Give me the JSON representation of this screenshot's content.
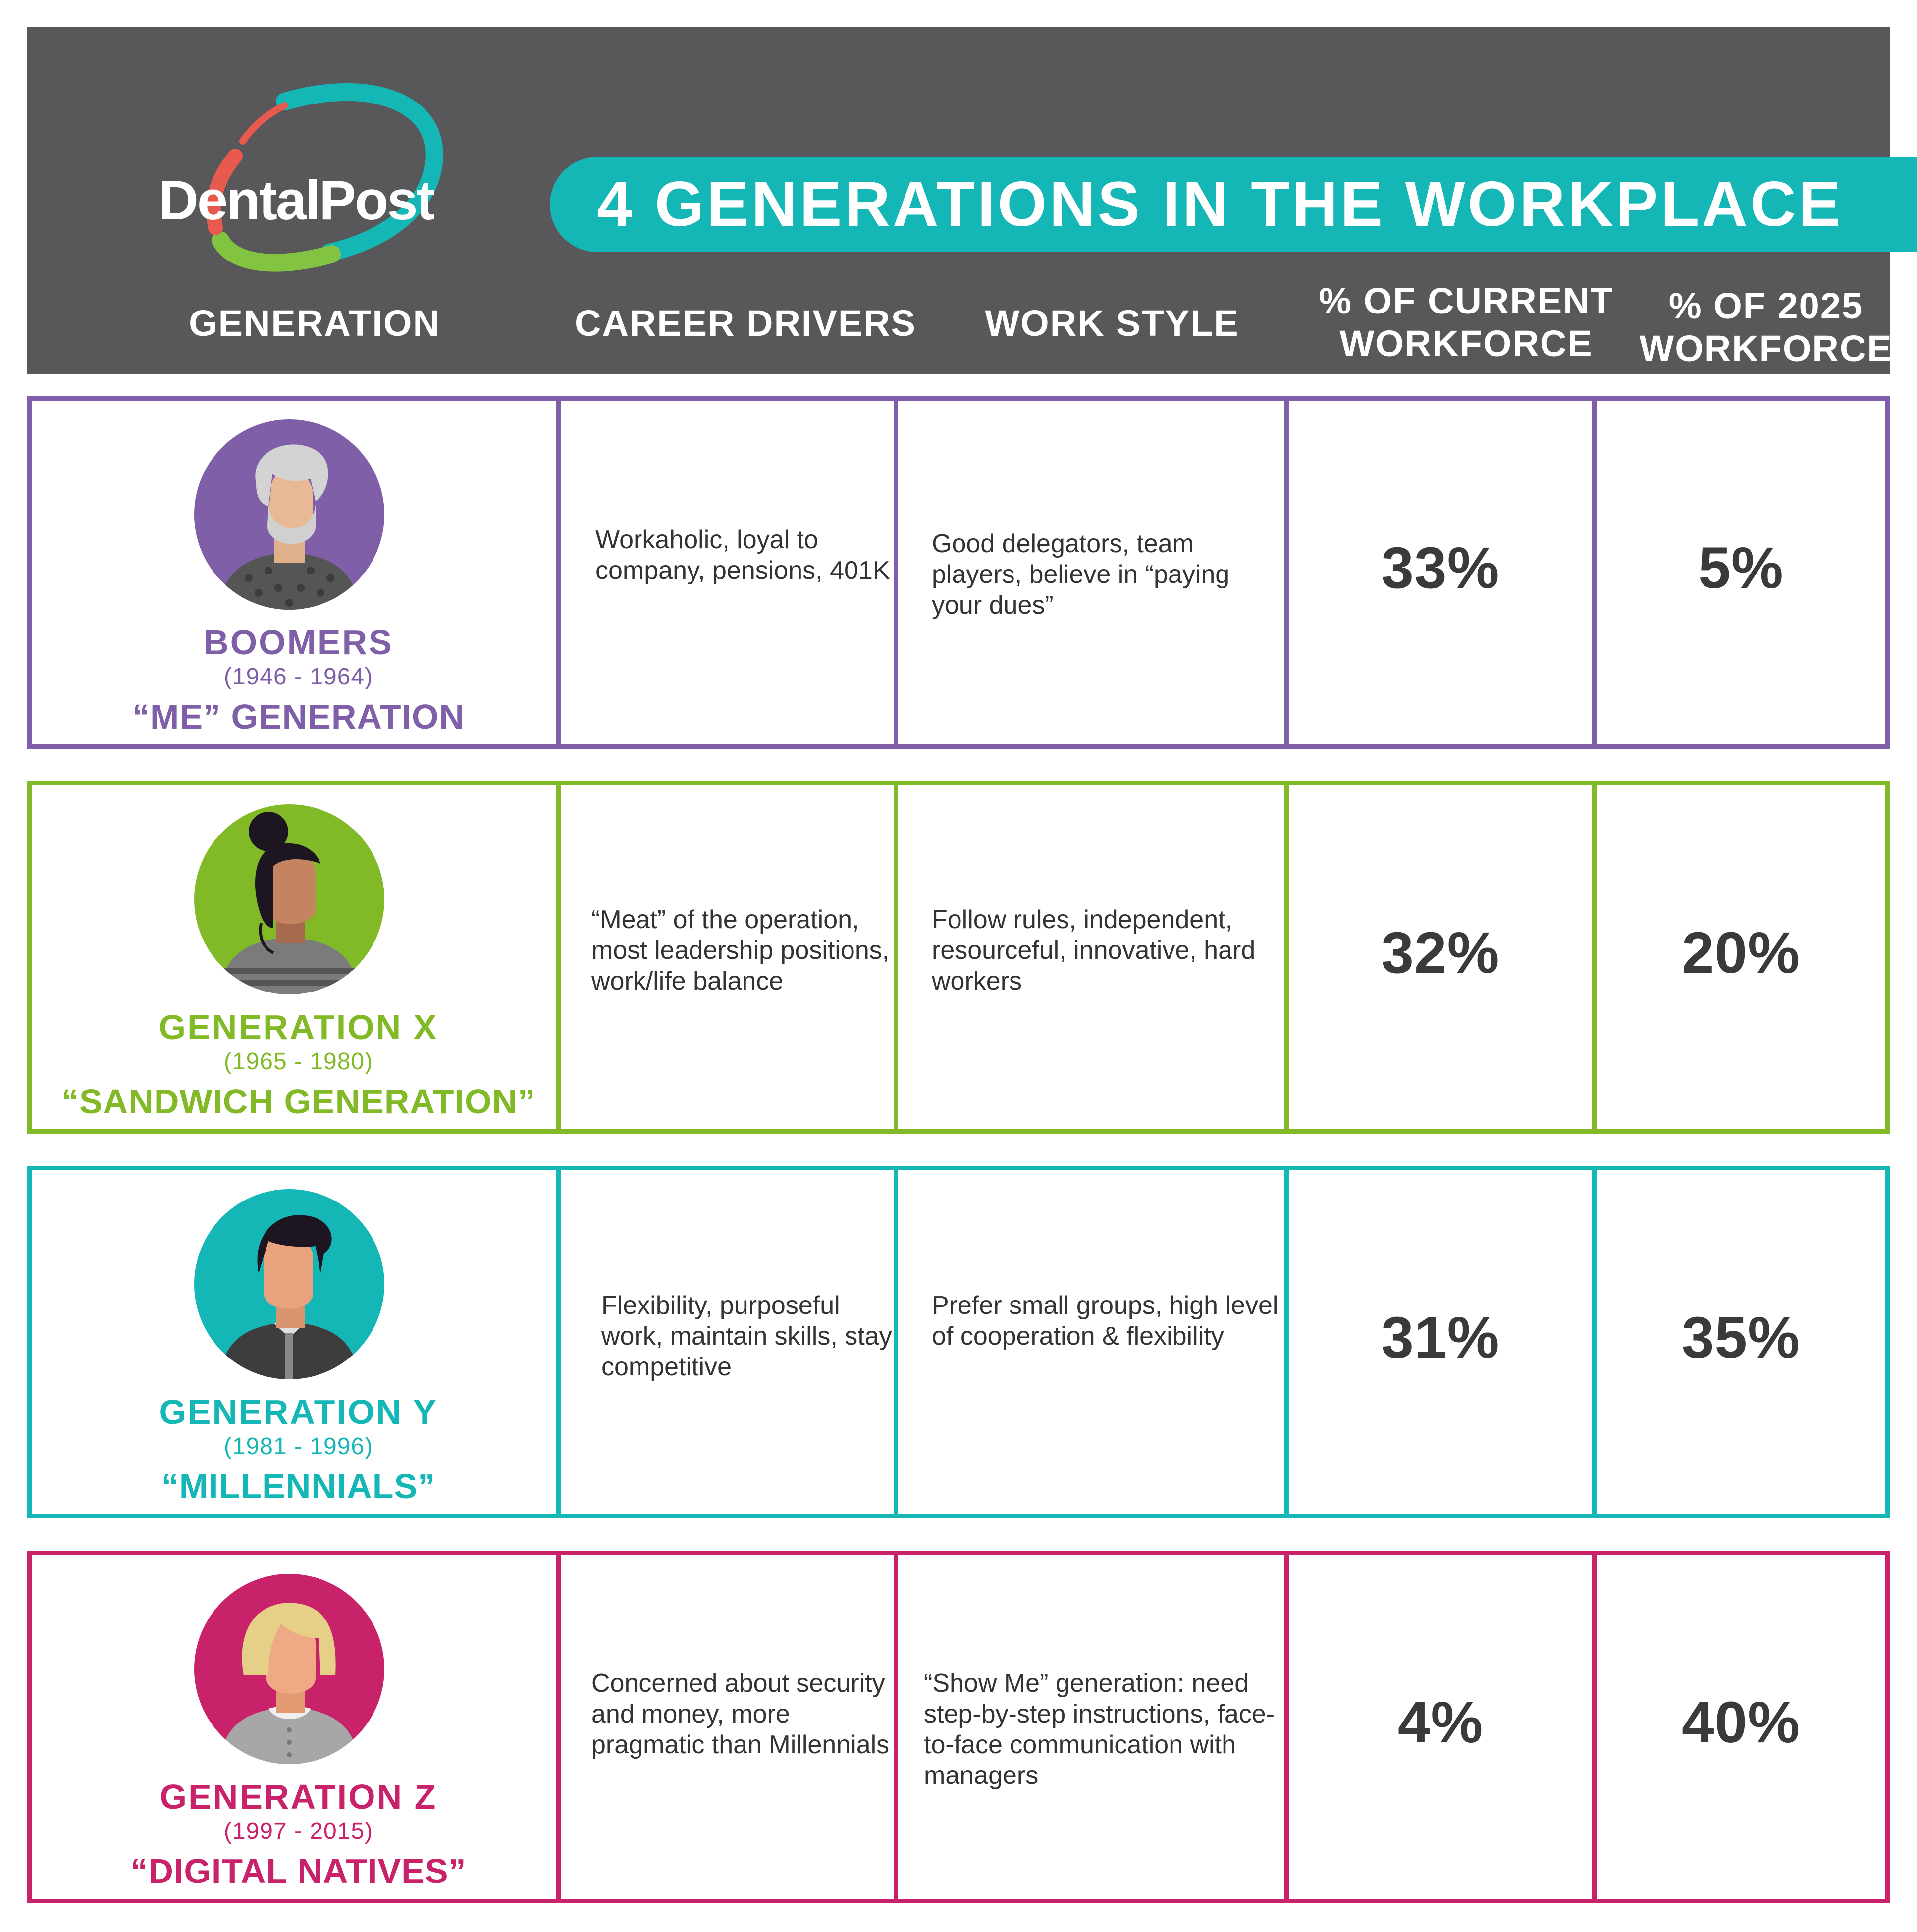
{
  "brand": {
    "logo_text": "DentalPost"
  },
  "title": "4 GENERATIONS IN THE WORKPLACE",
  "columns": {
    "generation": "GENERATION",
    "career_drivers": "CAREER DRIVERS",
    "work_style": "WORK STYLE",
    "current": "% OF CURRENT\nWORKFORCE",
    "future": "% OF 2025\nWORKFORCE"
  },
  "colors": {
    "header_bg": "#58585a",
    "title_bar": "#14b7b6",
    "boomers": "#7f5fa8",
    "genx": "#82ba27",
    "geny": "#14b7b6",
    "genz": "#c8226b",
    "logo_red": "#e8594e",
    "logo_teal": "#14b7b6",
    "logo_green": "#82c341"
  },
  "rows": [
    {
      "name": "BOOMERS",
      "years": "(1946 - 1964)",
      "nickname": "“ME” GENERATION",
      "career": "Workaholic, loyal to company, pensions, 401K",
      "style": "Good delegators, team players, believe in “paying your dues”",
      "current": "33%",
      "future": "5%",
      "avatar": "older-man-avatar-icon"
    },
    {
      "name": "GENERATION X",
      "years": "(1965 - 1980)",
      "nickname": "“SANDWICH GENERATION”",
      "career": "“Meat” of the operation, most leadership positions, work/life balance",
      "style": "Follow rules, independent, resourceful, innovative, hard workers",
      "current": "32%",
      "future": "20%",
      "avatar": "woman-bun-avatar-icon"
    },
    {
      "name": "GENERATION Y",
      "years": "(1981 - 1996)",
      "nickname": "“MILLENNIALS”",
      "career": "Flexibility, purposeful work, maintain skills, stay competitive",
      "style": "Prefer small groups, high level of cooperation & flexibility",
      "current": "31%",
      "future": "35%",
      "avatar": "young-man-avatar-icon"
    },
    {
      "name": "GENERATION Z",
      "years": "(1997 - 2015)",
      "nickname": "“DIGITAL NATIVES”",
      "career": "Concerned about security and money, more pragmatic than Millennials",
      "style": "“Show Me” generation: need step-by-step instructions, face-to-face communication with managers",
      "current": "4%",
      "future": "40%",
      "avatar": "young-woman-avatar-icon"
    }
  ]
}
